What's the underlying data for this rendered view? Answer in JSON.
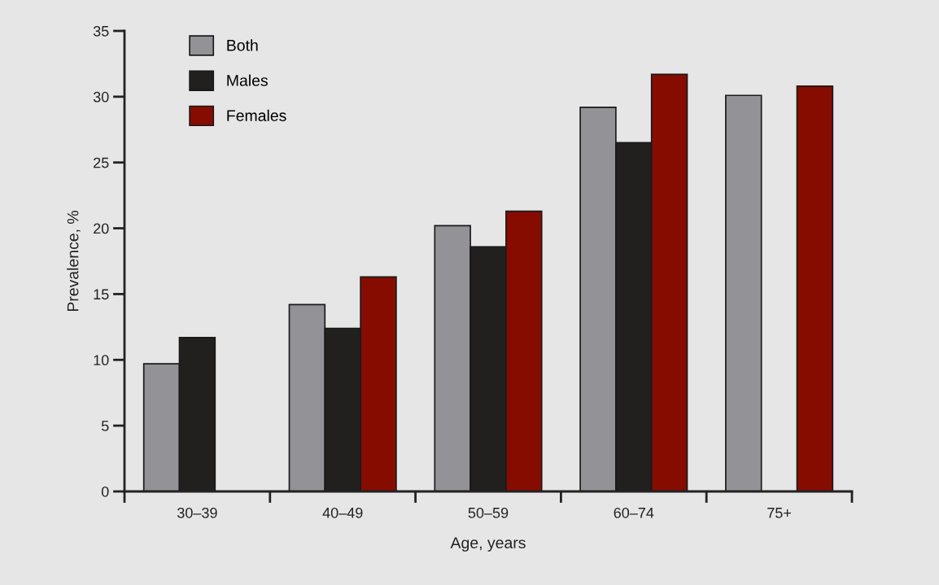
{
  "chart_data": {
    "type": "bar",
    "xlabel": "Age, years",
    "ylabel": "Prevalence, %",
    "categories": [
      "30–39",
      "40–49",
      "50–59",
      "60–74",
      "75+"
    ],
    "series": [
      {
        "name": "Both",
        "color": "#939397",
        "values": [
          9.7,
          14.2,
          20.2,
          29.2,
          30.1
        ]
      },
      {
        "name": "Males",
        "color": "#221f1f",
        "values": [
          11.7,
          12.4,
          18.6,
          26.5,
          null
        ]
      },
      {
        "name": "Females",
        "color": "#870c00",
        "values": [
          null,
          16.3,
          21.3,
          31.7,
          30.8
        ]
      }
    ],
    "ylim": [
      0,
      35
    ],
    "yticks": [
      0,
      5,
      10,
      15,
      20,
      25,
      30,
      35
    ],
    "grid": false,
    "legend": "top left"
  }
}
